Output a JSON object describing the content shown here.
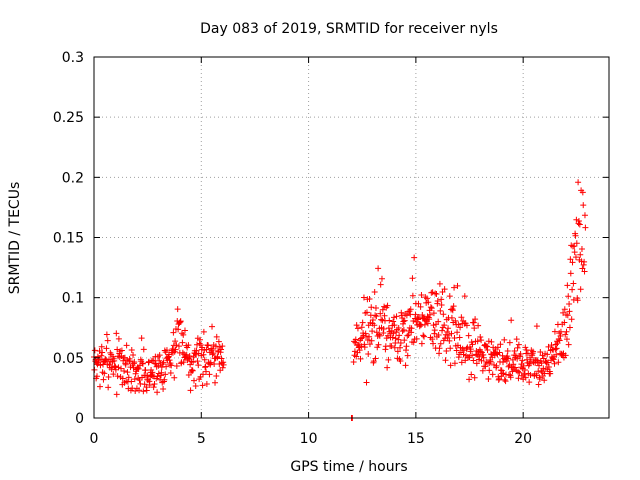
{
  "chart_data": {
    "type": "scatter",
    "title": "Day 083 of 2019, SRMTID for receiver nyls",
    "xlabel": "GPS time / hours",
    "ylabel": "SRMTID / TECUs",
    "xlim": [
      0,
      24
    ],
    "ylim": [
      0,
      0.3
    ],
    "grid": true,
    "marker": "+",
    "color": "#ff0000",
    "xticks": [
      0,
      5,
      10,
      15,
      20
    ],
    "xtick_labels": [
      "0",
      "5",
      "10",
      "15",
      "20"
    ],
    "yticks": [
      0,
      0.05,
      0.1,
      0.15,
      0.2,
      0.25,
      0.3
    ],
    "ytick_labels": [
      "0",
      "0.05",
      "0.1",
      "0.15",
      "0.2",
      "0.25",
      "0.3"
    ],
    "series": [
      {
        "name": "SRMTID",
        "segments": [
          {
            "x_start": 0.0,
            "x_end": 6.05,
            "step": 0.02,
            "envelope_x": [
              0,
              1,
              2,
              2.5,
              3,
              3.5,
              4,
              4.5,
              5,
              5.5,
              6.05
            ],
            "envelope_mean": [
              0.045,
              0.045,
              0.04,
              0.035,
              0.04,
              0.05,
              0.065,
              0.05,
              0.05,
              0.055,
              0.045
            ],
            "envelope_spread": [
              0.02,
              0.02,
              0.018,
              0.015,
              0.018,
              0.02,
              0.022,
              0.02,
              0.02,
              0.02,
              0.015
            ],
            "seed": 7
          },
          {
            "x_start": 12.0,
            "x_end": 12.05,
            "step": 0.02,
            "envelope_x": [
              12.0,
              12.05
            ],
            "envelope_mean": [
              0.0,
              0.0
            ],
            "envelope_spread": [
              0.0,
              0.0
            ],
            "seed": 3
          },
          {
            "x_start": 12.1,
            "x_end": 22.9,
            "step": 0.02,
            "envelope_x": [
              12.1,
              13,
              14,
              15,
              16,
              17,
              18,
              19,
              20,
              21,
              21.8,
              22.3,
              22.6,
              22.9
            ],
            "envelope_mean": [
              0.06,
              0.08,
              0.065,
              0.075,
              0.085,
              0.07,
              0.055,
              0.045,
              0.045,
              0.045,
              0.06,
              0.11,
              0.16,
              0.12
            ],
            "envelope_spread": [
              0.02,
              0.035,
              0.025,
              0.025,
              0.03,
              0.025,
              0.02,
              0.015,
              0.015,
              0.015,
              0.02,
              0.04,
              0.06,
              0.04
            ],
            "seed": 11
          }
        ]
      }
    ]
  }
}
